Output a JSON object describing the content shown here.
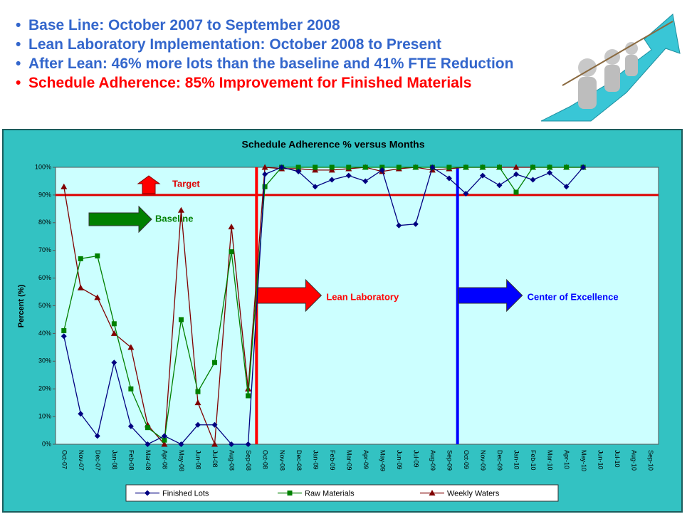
{
  "header": {
    "bullets": [
      {
        "text": "Base Line: October 2007 to September 2008",
        "color": "#3366cc"
      },
      {
        "text": "Lean Laboratory Implementation: October 2008 to Present",
        "color": "#3366cc"
      },
      {
        "text": "After Lean: 46% more lots than the baseline and 41% FTE Reduction",
        "color": "#3366cc"
      },
      {
        "text": "Schedule Adherence: 85% Improvement for Finished Materials",
        "color": "#ff0000"
      }
    ]
  },
  "chart_data": {
    "type": "line",
    "title": "Schedule Adherence % versus Months",
    "y_label": "Percent (%)",
    "categories": [
      "Oct-07",
      "Nov-07",
      "Dec-07",
      "Jan-08",
      "Feb-08",
      "Mar-08",
      "Apr-08",
      "May-08",
      "Jun-08",
      "Jul-08",
      "Aug-08",
      "Sep-08",
      "Oct-08",
      "Nov-08",
      "Dec-08",
      "Jan-09",
      "Feb-09",
      "Mar-09",
      "Apr-09",
      "May-09",
      "Jun-09",
      "Jul-09",
      "Aug-09",
      "Sep-09",
      "Oct-09",
      "Nov-09",
      "Dec-09",
      "Jan-10",
      "Feb-10",
      "Mar-10",
      "Apr-10",
      "May-10",
      "Jun-10",
      "Jul-10",
      "Aug-10",
      "Sep-10"
    ],
    "series": [
      {
        "name": "Finished Lots",
        "color": "#000080",
        "marker": "diamond",
        "values": [
          39,
          11,
          3,
          29.5,
          6.5,
          0,
          3,
          0,
          7,
          7,
          0,
          0,
          97.5,
          100,
          98.5,
          93,
          95.5,
          97,
          95,
          99,
          79,
          79.5,
          100,
          96,
          90.5,
          97,
          93.5,
          97.5,
          95.5,
          98,
          93,
          100,
          null,
          null,
          null,
          null
        ]
      },
      {
        "name": "Raw Materials",
        "color": "#008000",
        "marker": "square",
        "values": [
          41,
          67,
          68,
          43.5,
          20,
          6,
          1.5,
          45,
          19,
          29.5,
          69.5,
          17.5,
          93,
          100,
          100,
          100,
          100,
          100,
          100,
          100,
          100,
          100,
          100,
          100,
          100,
          100,
          100,
          91,
          100,
          100,
          100,
          100,
          null,
          null,
          null,
          null
        ]
      },
      {
        "name": "Weekly Waters",
        "color": "#800000",
        "marker": "triangle",
        "values": [
          93,
          56.5,
          53,
          40,
          35,
          7,
          0,
          84.5,
          15,
          0,
          78.5,
          20,
          100,
          99.5,
          99.5,
          99,
          99,
          99.5,
          100,
          98.5,
          99.5,
          100,
          99,
          99.5,
          100,
          100,
          100,
          100,
          100,
          100,
          100,
          100,
          null,
          null,
          null,
          null
        ]
      }
    ],
    "ylim": [
      0,
      100
    ],
    "yticks": [
      {
        "value": 0,
        "label": "0%"
      },
      {
        "value": 10,
        "label": "10%"
      },
      {
        "value": 20,
        "label": "20%"
      },
      {
        "value": 30,
        "label": "30%"
      },
      {
        "value": 40,
        "label": "40%"
      },
      {
        "value": 50,
        "label": "50%"
      },
      {
        "value": 60,
        "label": "60%"
      },
      {
        "value": 70,
        "label": "70%"
      },
      {
        "value": 80,
        "label": "80%"
      },
      {
        "value": 90,
        "label": "90%"
      },
      {
        "value": 100,
        "label": "100%"
      }
    ],
    "grid": false,
    "target": {
      "label": "Target",
      "value": 90,
      "color": "#dd0000"
    },
    "phases": [
      {
        "label": "Baseline",
        "color": "#008000"
      },
      {
        "label": "Lean Laboratory",
        "start": "Oct-08",
        "color": "#ff0000"
      },
      {
        "label": "Center of Excellence",
        "start": "Oct-09",
        "color": "#0000ff"
      }
    ]
  }
}
